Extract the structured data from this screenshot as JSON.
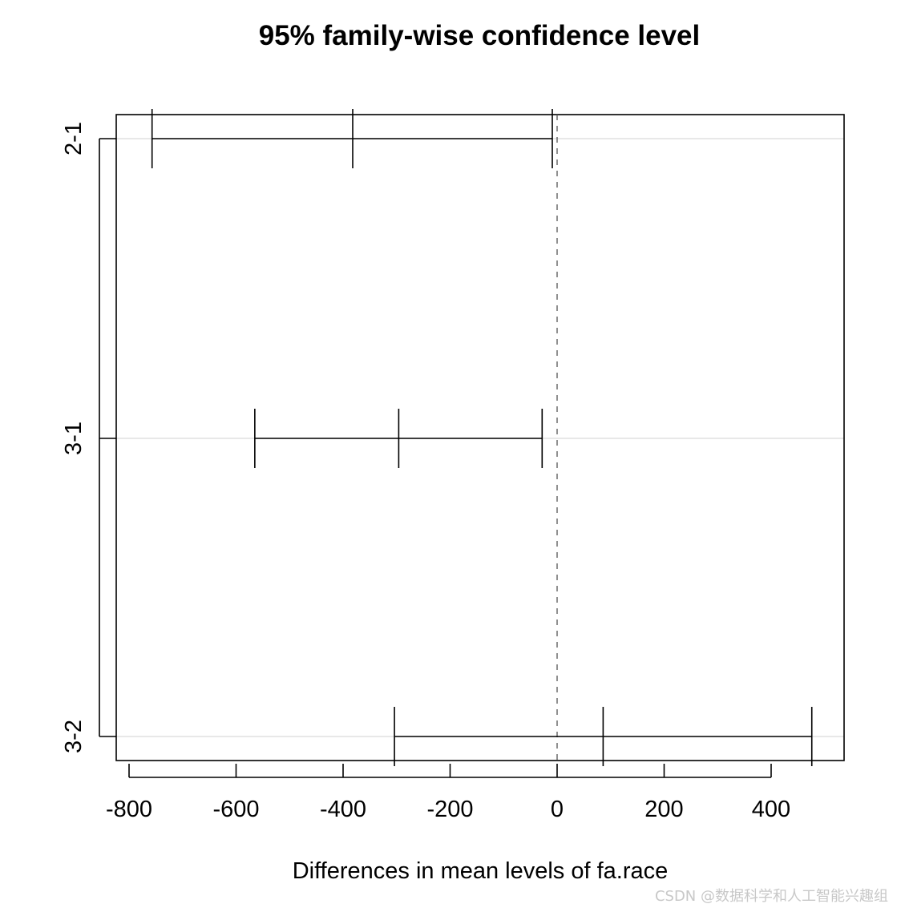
{
  "chart_data": {
    "type": "interval",
    "title": "95% family-wise confidence level",
    "xlabel": "Differences in mean levels of fa.race",
    "ylabel": "",
    "xlim": [
      -800,
      520
    ],
    "x_ticks": [
      -800,
      -600,
      -400,
      -200,
      0,
      200,
      400
    ],
    "x_tick_labels": [
      "-800",
      "-600",
      "-400",
      "-200",
      "0",
      "200",
      "400"
    ],
    "reference_line": 0,
    "comparisons": [
      {
        "label": "2-1",
        "lwr": -757,
        "diff": -382,
        "upr": -9
      },
      {
        "label": "3-1",
        "lwr": -565,
        "diff": -296,
        "upr": -28
      },
      {
        "label": "3-2",
        "lwr": -304,
        "diff": 86,
        "upr": 476
      }
    ]
  },
  "watermark": "CSDN @数据科学和人工智能兴趣组"
}
